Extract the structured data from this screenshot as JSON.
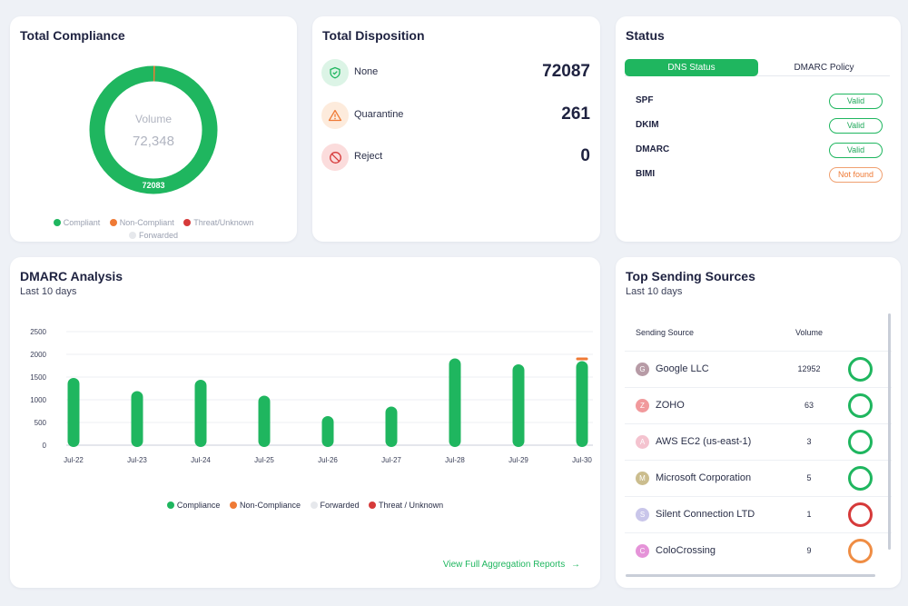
{
  "compliance": {
    "title": "Total Compliance",
    "center_label": "Volume",
    "center_value": "72,348",
    "ring_label": "72083",
    "ring_fraction_compliant": 0.9963,
    "legend": [
      {
        "label": "Compliant",
        "color": "#1fb65f"
      },
      {
        "label": "Non-Compliant",
        "color": "#ef7a35"
      },
      {
        "label": "Threat/Unknown",
        "color": "#d63a3a"
      },
      {
        "label": "Forwarded",
        "color": "#e6e8ec"
      }
    ]
  },
  "disposition": {
    "title": "Total Disposition",
    "rows": [
      {
        "label": "None",
        "value": "72087",
        "icon": "shield-check-icon",
        "color": "#1fb65f"
      },
      {
        "label": "Quarantine",
        "value": "261",
        "icon": "warning-triangle-icon",
        "color": "#ef7a35"
      },
      {
        "label": "Reject",
        "value": "0",
        "icon": "prohibited-icon",
        "color": "#d63a3a"
      }
    ]
  },
  "status": {
    "title": "Status",
    "tabs": [
      "DNS Status",
      "DMARC Policy"
    ],
    "active_tab": "DNS Status",
    "rows": [
      {
        "name": "SPF",
        "status": "Valid"
      },
      {
        "name": "DKIM",
        "status": "Valid"
      },
      {
        "name": "DMARC",
        "status": "Valid"
      },
      {
        "name": "BIMI",
        "status": "Not found"
      }
    ]
  },
  "analysis": {
    "title": "DMARC Analysis",
    "subtitle": "Last 10 days",
    "view_link": "View Full Aggregation Reports",
    "legend": [
      {
        "label": "Compliance",
        "color": "#1fb65f"
      },
      {
        "label": "Non-Compliance",
        "color": "#ef7a35"
      },
      {
        "label": "Forwarded",
        "color": "#e6e8ec"
      },
      {
        "label": "Threat / Unknown",
        "color": "#d63a3a"
      }
    ]
  },
  "chart_data": {
    "type": "bar",
    "categories": [
      "Jul-22",
      "Jul-23",
      "Jul-24",
      "Jul-25",
      "Jul-26",
      "Jul-27",
      "Jul-28",
      "Jul-29",
      "Jul-30"
    ],
    "series": [
      {
        "name": "Compliance",
        "values": [
          1480,
          1190,
          1440,
          1090,
          640,
          850,
          1910,
          1780,
          1850
        ]
      },
      {
        "name": "Non-Compliance",
        "values": [
          0,
          0,
          0,
          0,
          0,
          0,
          0,
          0,
          40
        ]
      },
      {
        "name": "Forwarded",
        "values": [
          0,
          0,
          0,
          0,
          0,
          0,
          0,
          0,
          0
        ]
      },
      {
        "name": "Threat / Unknown",
        "values": [
          0,
          0,
          0,
          0,
          0,
          0,
          0,
          0,
          0
        ]
      }
    ],
    "yticks": [
      0,
      500,
      1000,
      1500,
      2000,
      2500
    ],
    "ylim": [
      0,
      2500
    ],
    "grid": true,
    "legend_position": "bottom"
  },
  "sources": {
    "title": "Top Sending Sources",
    "subtitle": "Last 10 days",
    "col_source": "Sending Source",
    "col_volume": "Volume",
    "rows": [
      {
        "initial": "G",
        "name": "Google LLC",
        "volume": "12952",
        "avatar": "#b79ba6",
        "ring": "#1fb65f"
      },
      {
        "initial": "Z",
        "name": "ZOHO",
        "volume": "63",
        "avatar": "#f1999c",
        "ring": "#1fb65f"
      },
      {
        "initial": "A",
        "name": "AWS EC2 (us-east-1)",
        "volume": "3",
        "avatar": "#f4c3cf",
        "ring": "#1fb65f"
      },
      {
        "initial": "M",
        "name": "Microsoft Corporation",
        "volume": "5",
        "avatar": "#cbbd8e",
        "ring": "#1fb65f"
      },
      {
        "initial": "S",
        "name": "Silent Connection LTD",
        "volume": "1",
        "avatar": "#c9c6ea",
        "ring": "#d63a3a"
      },
      {
        "initial": "C",
        "name": "ColoCrossing",
        "volume": "9",
        "avatar": "#e593d8",
        "ring": "#ef8d44"
      }
    ]
  }
}
